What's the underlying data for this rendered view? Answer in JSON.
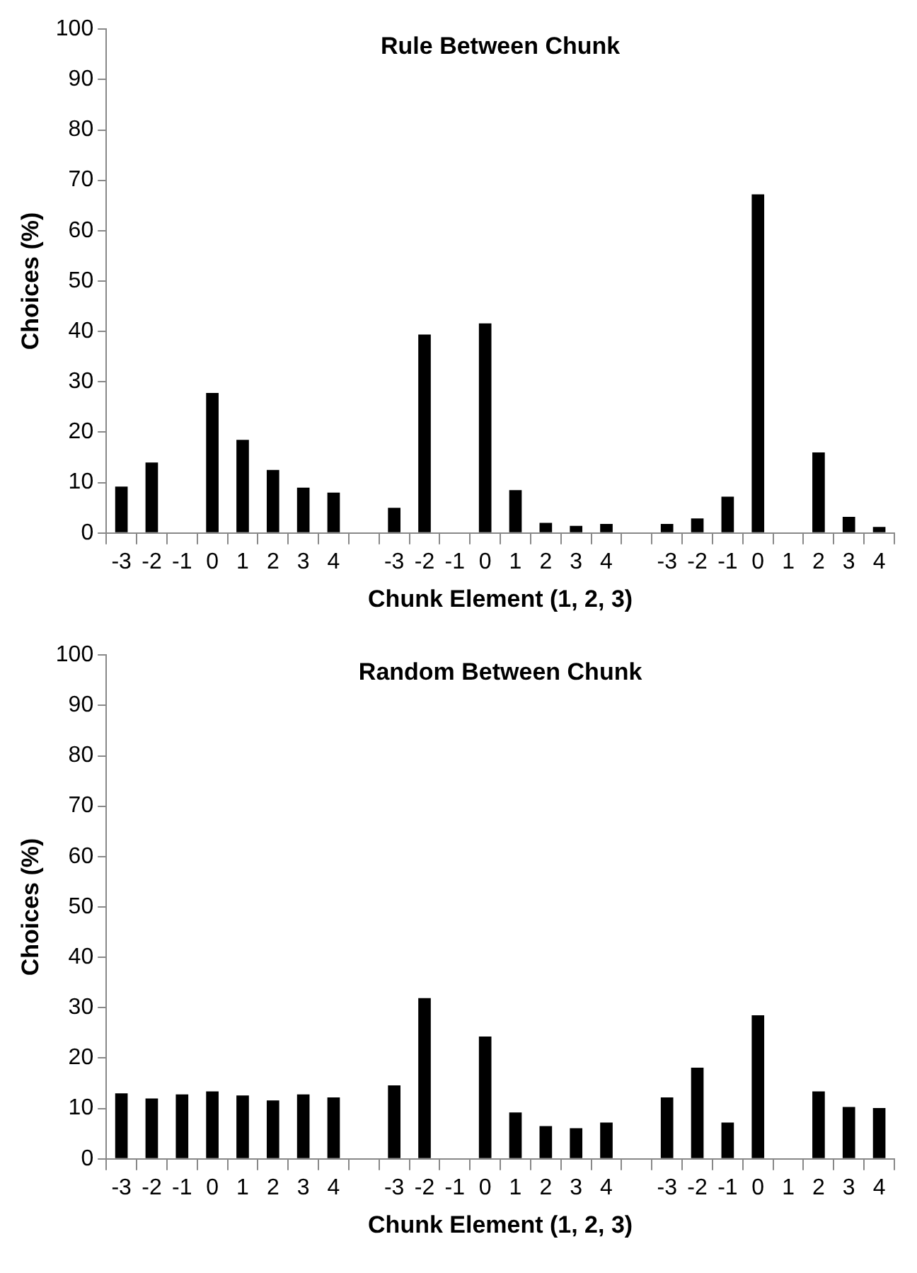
{
  "chart_data": [
    {
      "type": "bar",
      "title": "Rule Between Chunk",
      "xlabel": "Chunk Element (1, 2, 3)",
      "ylabel": "Choices (%)",
      "categories": [
        "-3",
        "-2",
        "-1",
        "0",
        "1",
        "2",
        "3",
        "4",
        null,
        "-3",
        "-2",
        "-1",
        "0",
        "1",
        "2",
        "3",
        "4",
        null,
        "-3",
        "-2",
        "-1",
        "0",
        "1",
        "2",
        "3",
        "4"
      ],
      "values": [
        9.2,
        14,
        0,
        27.8,
        18.5,
        12.5,
        9,
        8,
        null,
        5,
        39.4,
        0,
        41.6,
        8.5,
        2,
        1.4,
        1.8,
        null,
        1.8,
        2.9,
        7.2,
        67.2,
        0,
        16,
        3.2,
        1.2
      ],
      "color": "#000000",
      "ylim": [
        0,
        100
      ],
      "yticks": [
        0,
        10,
        20,
        30,
        40,
        50,
        60,
        70,
        80,
        90,
        100
      ],
      "grid": false,
      "legend": false
    },
    {
      "type": "bar",
      "title": "Random Between Chunk",
      "xlabel": "Chunk Element (1, 2, 3)",
      "ylabel": "Choices (%)",
      "categories": [
        "-3",
        "-2",
        "-1",
        "0",
        "1",
        "2",
        "3",
        "4",
        null,
        "-3",
        "-2",
        "-1",
        "0",
        "1",
        "2",
        "3",
        "4",
        null,
        "-3",
        "-2",
        "-1",
        "0",
        "1",
        "2",
        "3",
        "4"
      ],
      "values": [
        13,
        12,
        12.8,
        13.4,
        12.6,
        11.6,
        12.8,
        12.2,
        null,
        14.6,
        31.9,
        0,
        24.3,
        9.2,
        6.5,
        6.1,
        7.2,
        null,
        12.2,
        18.1,
        7.2,
        28.5,
        0,
        13.4,
        10.3,
        10.1
      ],
      "color": "#000000",
      "ylim": [
        0,
        100
      ],
      "yticks": [
        0,
        10,
        20,
        30,
        40,
        50,
        60,
        70,
        80,
        90,
        100
      ],
      "grid": false,
      "legend": false
    }
  ]
}
